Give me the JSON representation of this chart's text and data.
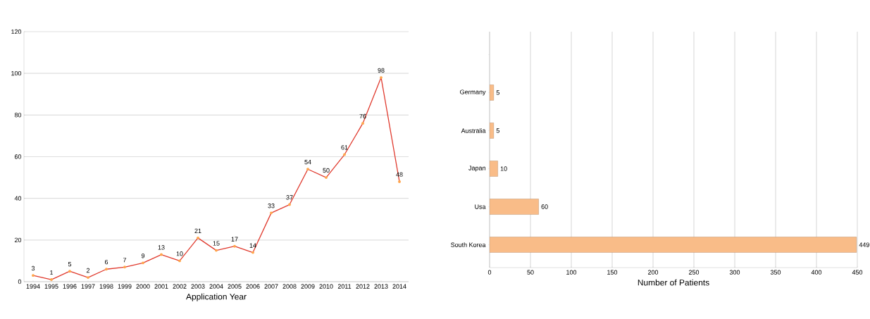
{
  "chart_data": [
    {
      "type": "line",
      "xlabel": "Application Year",
      "categories": [
        "1994",
        "1995",
        "1996",
        "1997",
        "1998",
        "1999",
        "2000",
        "2001",
        "2002",
        "2003",
        "2004",
        "2005",
        "2006",
        "2007",
        "2008",
        "2009",
        "2010",
        "2011",
        "2012",
        "2013",
        "2014"
      ],
      "series": [
        {
          "color": "#e03a2e",
          "values": [
            3,
            1,
            5,
            2,
            6,
            7,
            9,
            13,
            10,
            21,
            15,
            17,
            14,
            33,
            37,
            54,
            50,
            61,
            76,
            98,
            48
          ]
        }
      ],
      "ylim": [
        0,
        120
      ],
      "yticks": [
        0,
        20,
        40,
        60,
        80,
        100,
        120
      ],
      "grid": "y",
      "marker": "circle",
      "data_labels": true
    },
    {
      "type": "bar",
      "orientation": "horizontal",
      "xlabel": "Number of Patients",
      "categories": [
        null,
        "Germany",
        "Australia",
        "Japan",
        "Usa",
        "South Korea"
      ],
      "series": [
        {
          "color": "#f9bc88",
          "values": [
            null,
            5,
            5,
            10,
            60,
            449
          ]
        }
      ],
      "xlim": [
        0,
        450
      ],
      "xticks": [
        0,
        50,
        100,
        150,
        200,
        250,
        300,
        350,
        400,
        450
      ],
      "grid": "x",
      "data_labels": true
    }
  ]
}
